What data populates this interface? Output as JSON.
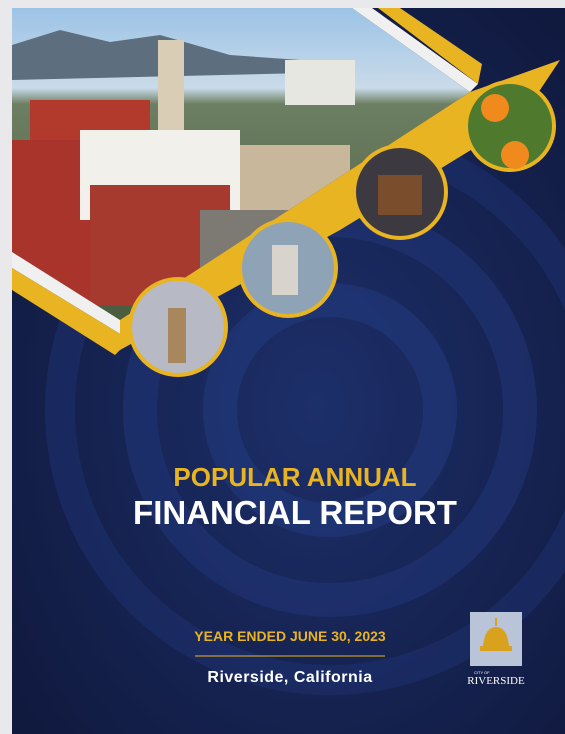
{
  "title": {
    "line1": "POPULAR ANNUAL",
    "line2": "FINANCIAL REPORT"
  },
  "period": "YEAR ENDED JUNE 30, 2023",
  "location": "Riverside, California",
  "logo": {
    "small": "CITY OF",
    "name": "RIVERSIDE"
  }
}
